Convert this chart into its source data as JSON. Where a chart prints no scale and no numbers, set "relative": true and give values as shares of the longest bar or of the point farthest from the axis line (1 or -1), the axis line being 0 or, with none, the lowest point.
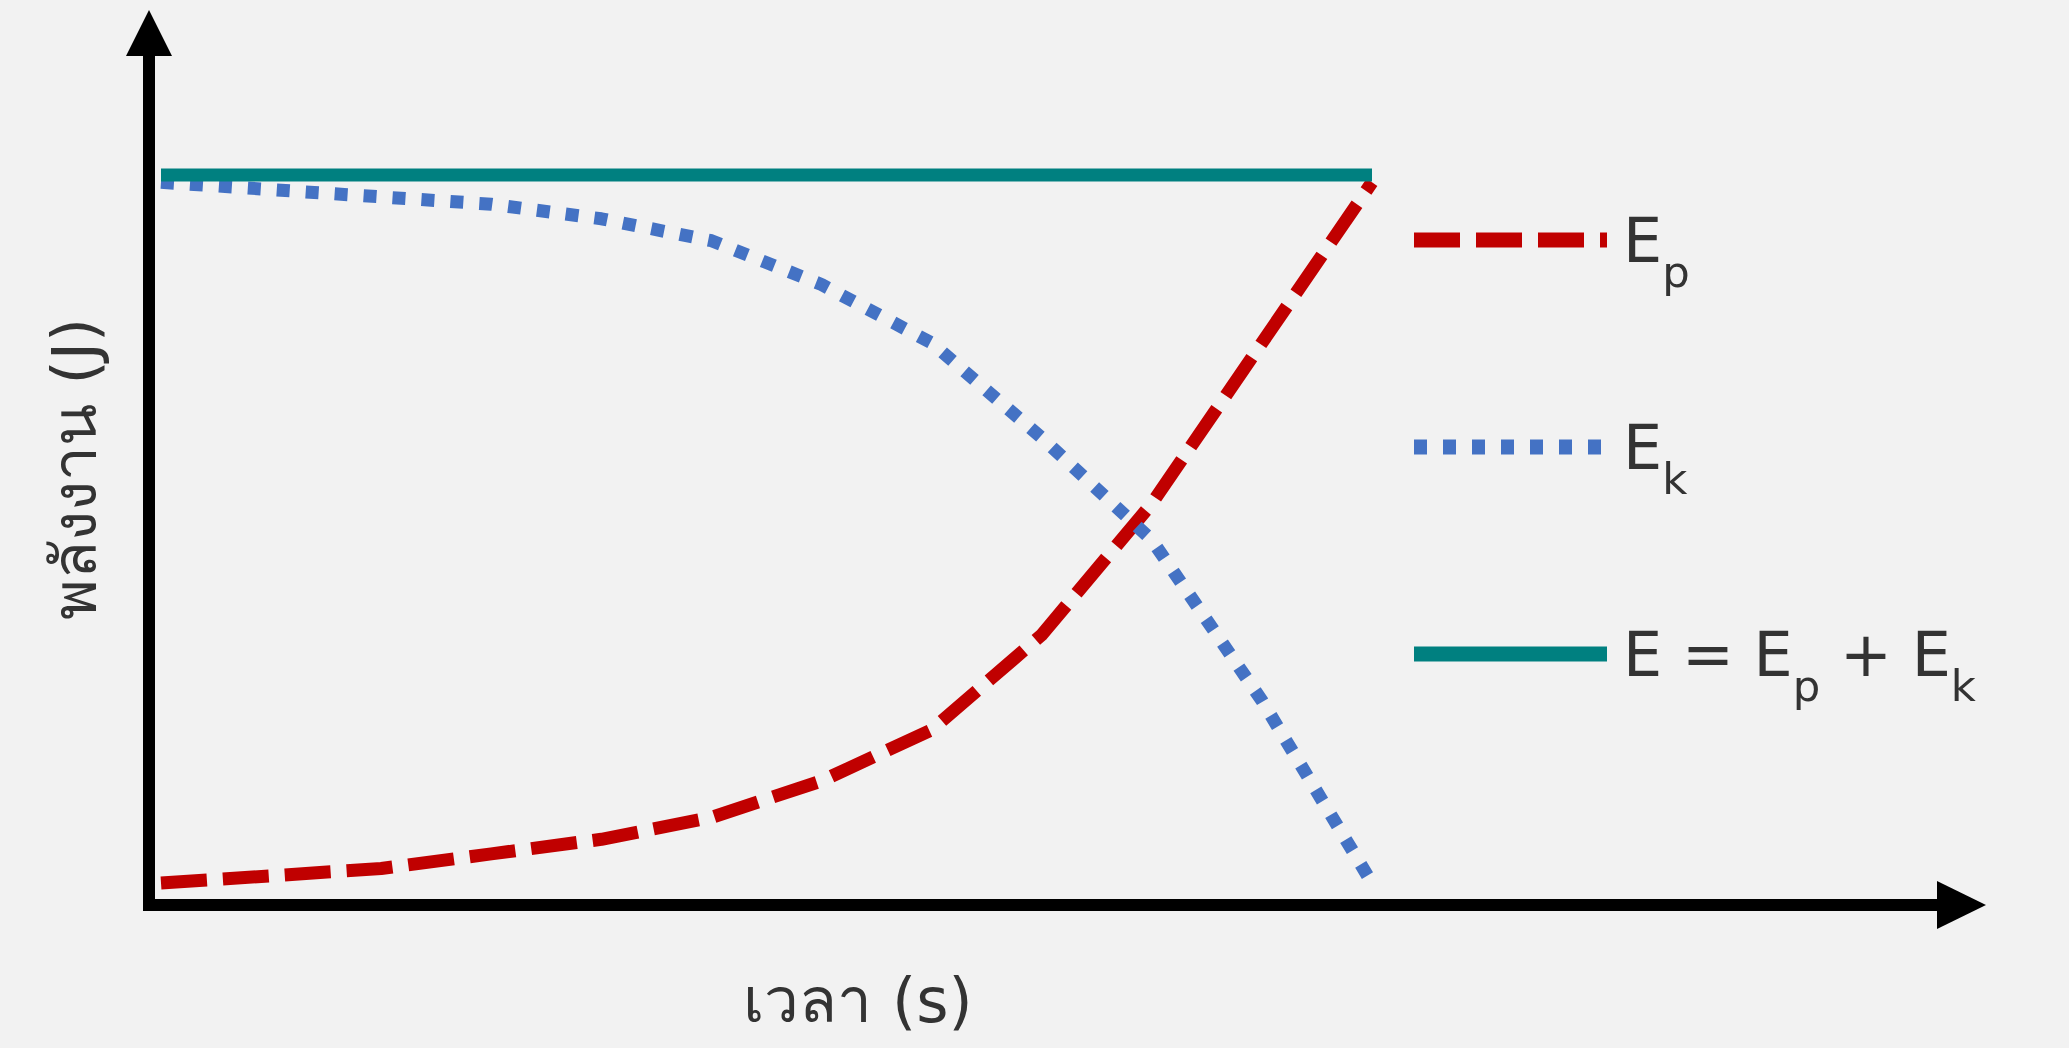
{
  "chart_data": {
    "type": "line",
    "relative": true,
    "xlabel": "เวลา (s)",
    "ylabel": "พลังงาน (J)",
    "legend": "right",
    "categories": [
      null,
      null,
      null,
      null,
      null,
      null,
      null,
      null,
      null,
      null,
      null,
      null
    ],
    "series": [
      {
        "name": "E$_{p}$",
        "color": "#c00000",
        "line_style": "dashed",
        "values": [
          0.03,
          0.04,
          0.05,
          0.07,
          0.09,
          0.12,
          0.17,
          0.24,
          0.37,
          0.55,
          0.77,
          0.99
        ]
      },
      {
        "name": "E$_{k}$",
        "color": "#4472c4",
        "line_style": "dotted",
        "values": [
          0.99,
          0.98,
          0.97,
          0.96,
          0.94,
          0.91,
          0.85,
          0.77,
          0.64,
          0.5,
          0.28,
          0.03
        ]
      },
      {
        "name": "E = E$_{p}$ + E$_{k}$",
        "color": "#008080",
        "line_style": "solid",
        "values": [
          1,
          1,
          1,
          1,
          1,
          1,
          1,
          1,
          1,
          1,
          1,
          1
        ]
      }
    ]
  }
}
